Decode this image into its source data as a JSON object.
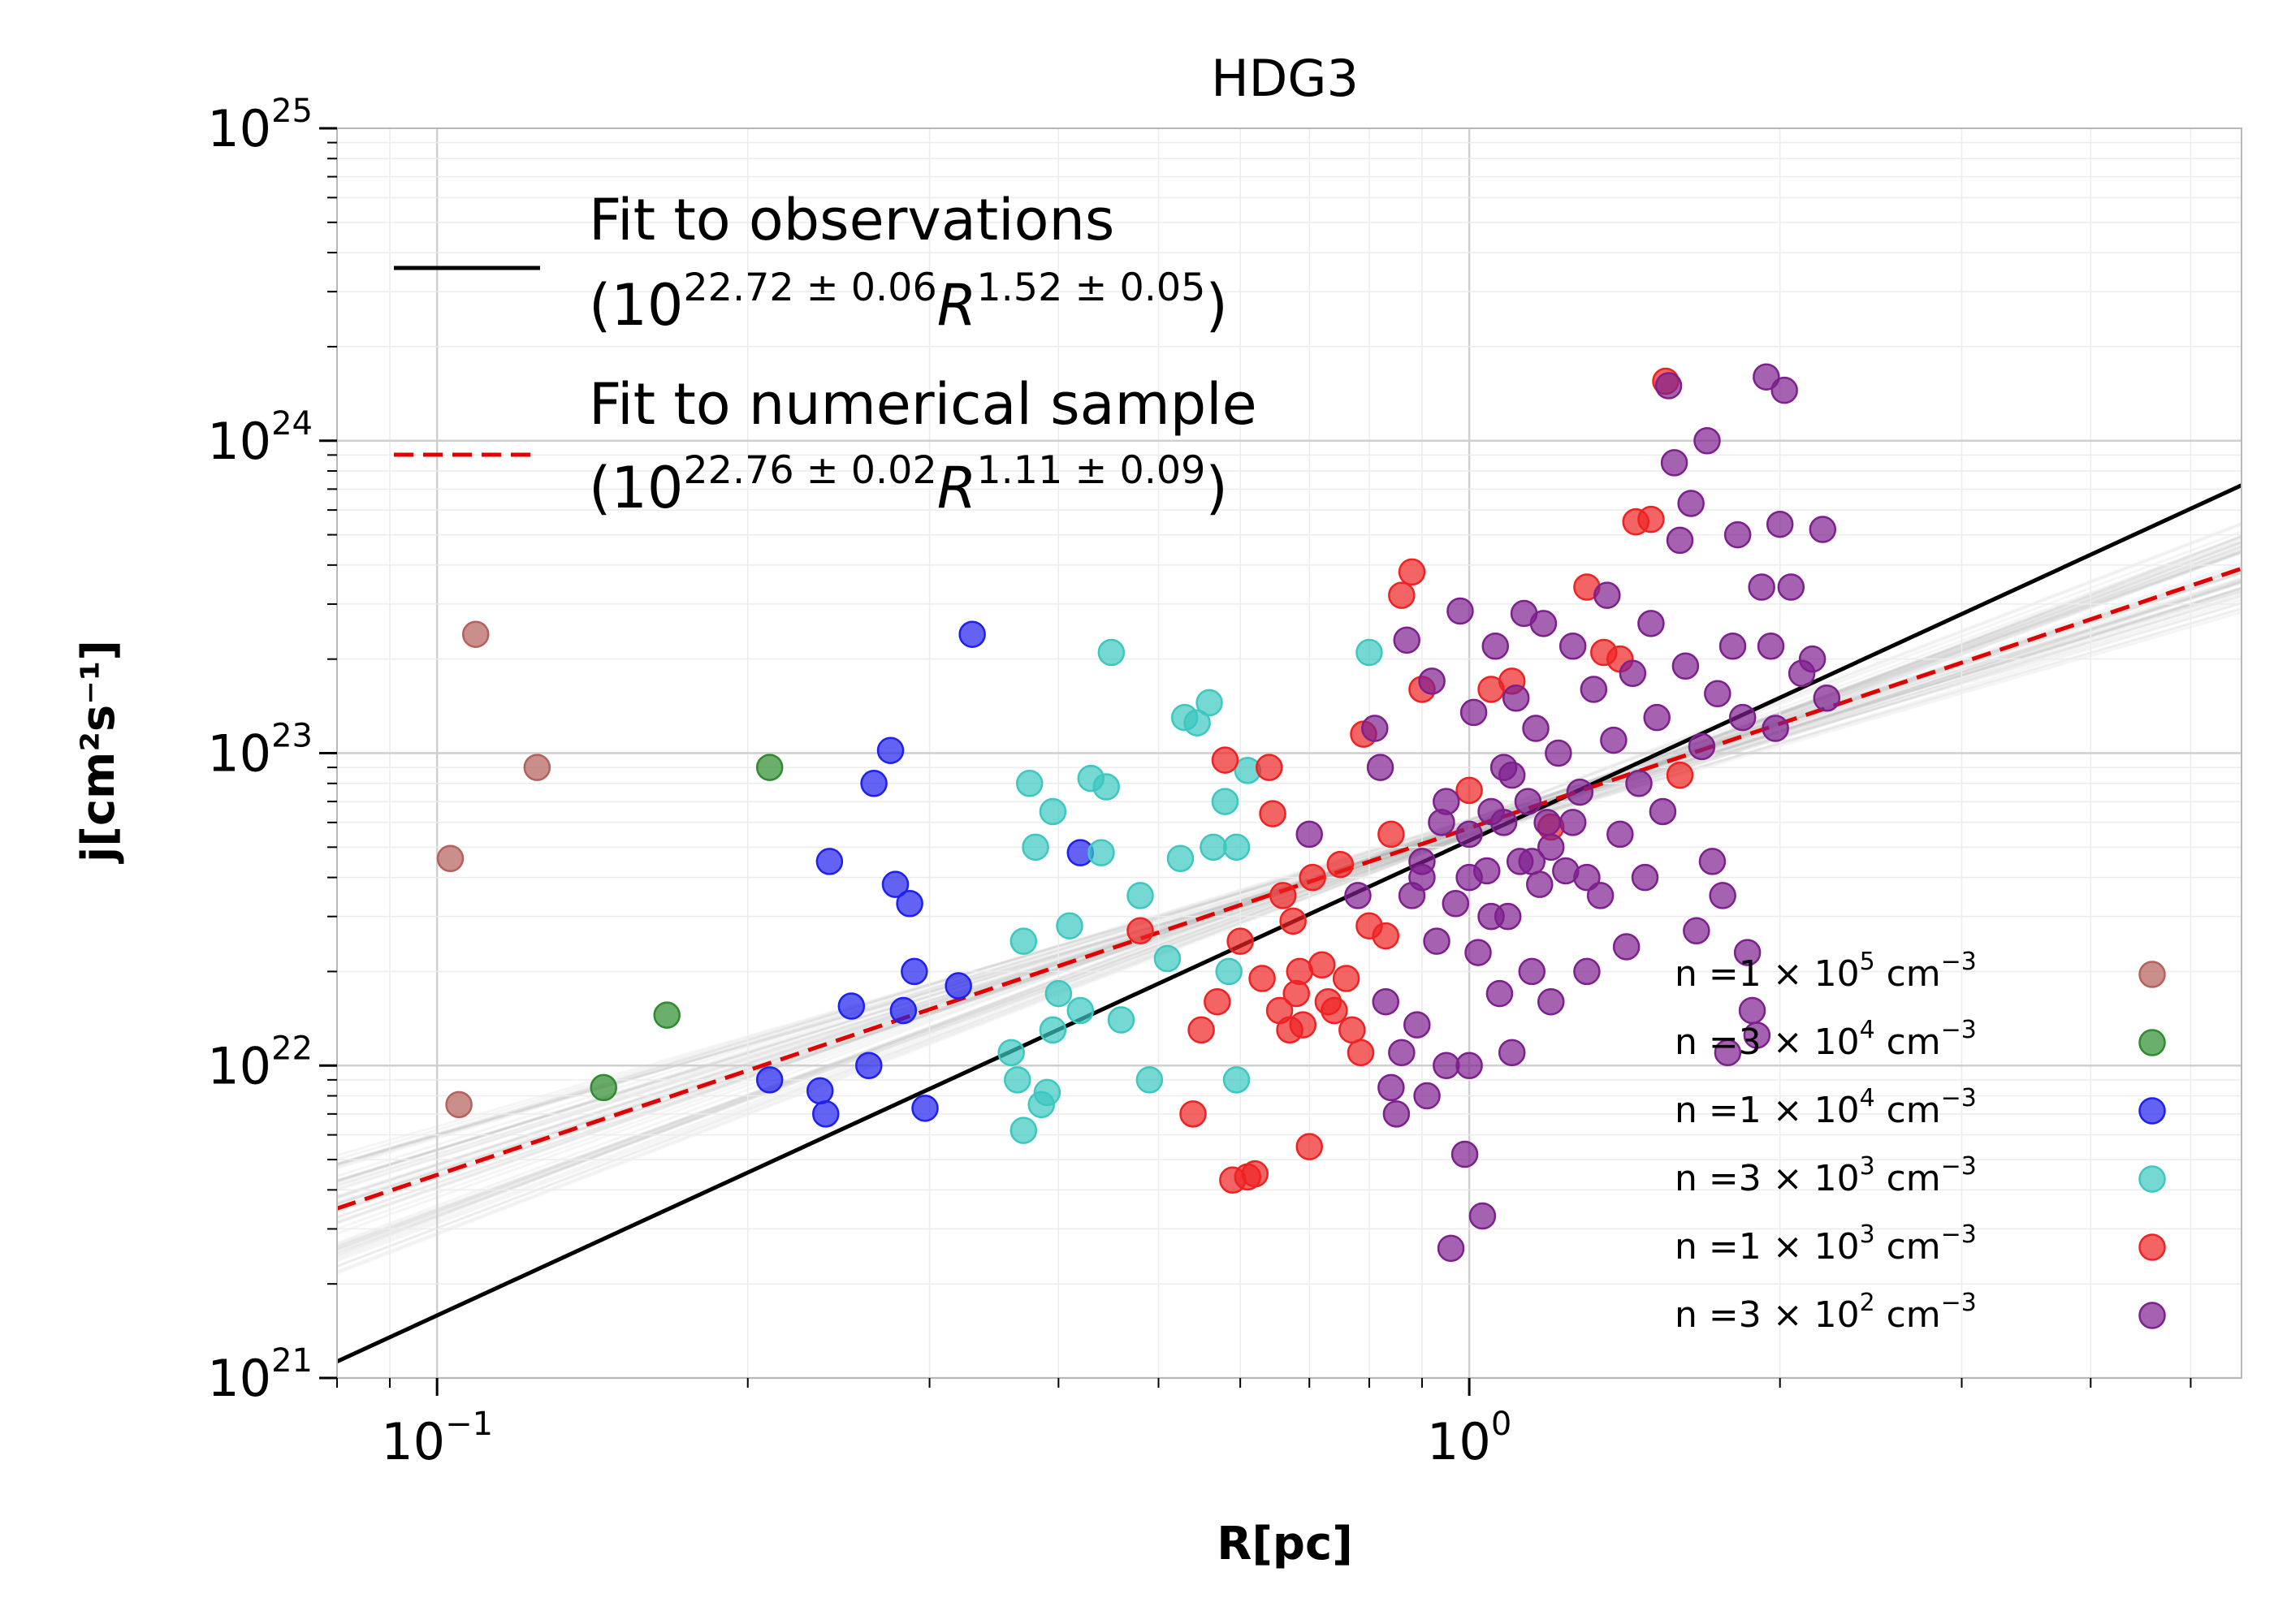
{
  "chart_data": {
    "type": "scatter",
    "title": "HDG3",
    "xlabel": "R[pc]",
    "ylabel": "j[cm²s⁻¹]",
    "xscale": "log",
    "yscale": "log",
    "xlim": [
      0.08,
      5.6
    ],
    "ylim": [
      1e+21,
      1e+25
    ],
    "x_ticks": [
      {
        "base": "10",
        "exp": "−1",
        "value": 0.1
      },
      {
        "base": "10",
        "exp": "0",
        "value": 1
      }
    ],
    "y_ticks": [
      {
        "base": "10",
        "exp": "21",
        "value": 1e+21
      },
      {
        "base": "10",
        "exp": "22",
        "value": 1e+22
      },
      {
        "base": "10",
        "exp": "23",
        "value": 1e+23
      },
      {
        "base": "10",
        "exp": "24",
        "value": 1e+24
      },
      {
        "base": "10",
        "exp": "25",
        "value": 1e+25
      }
    ],
    "grid": true,
    "fit_lines": [
      {
        "name": "Fit to observations",
        "formula_base": "10",
        "formula_exp": "22.72 ± 0.06",
        "formula_var": "R",
        "formula_pow": "1.52 ± 0.05",
        "log_intercept": 22.72,
        "slope": 1.52,
        "color": "#000000",
        "style": "solid"
      },
      {
        "name": "Fit to numerical sample",
        "formula_base": "10",
        "formula_exp": "22.76 ± 0.02",
        "formula_var": "R",
        "formula_pow": "1.11 ± 0.09",
        "log_intercept": 22.76,
        "slope": 1.11,
        "color": "#e00000",
        "style": "dashed"
      }
    ],
    "uncertainty_band": {
      "color": "#b0b0b0",
      "log_intercept_range": [
        22.73,
        22.79
      ],
      "slope_range": [
        0.95,
        1.28
      ]
    },
    "series": [
      {
        "name": "n =1×10⁵ cm⁻³",
        "label_pre": "n  =1 × 10",
        "label_exp": "5",
        "label_post": " cm",
        "label_unit_exp": "−3",
        "color": "#b5605a",
        "points": [
          [
            0.103,
            4.6e+22
          ],
          [
            0.105,
            7.5e+21
          ],
          [
            0.109,
            2.4e+23
          ],
          [
            0.125,
            9e+22
          ]
        ]
      },
      {
        "name": "n =3×10⁴ cm⁻³",
        "label_pre": "n  =3 × 10",
        "label_exp": "4",
        "label_post": " cm",
        "label_unit_exp": "−3",
        "color": "#2e8b2e",
        "points": [
          [
            0.145,
            8.5e+21
          ],
          [
            0.167,
            1.45e+22
          ],
          [
            0.21,
            9e+22
          ]
        ]
      },
      {
        "name": "n =1×10⁴ cm⁻³",
        "label_pre": "n  =1 × 10",
        "label_exp": "4",
        "label_post": " cm",
        "label_unit_exp": "−3",
        "color": "#1f1fee",
        "points": [
          [
            0.21,
            9e+21
          ],
          [
            0.235,
            8.3e+21
          ],
          [
            0.238,
            7e+21
          ],
          [
            0.24,
            4.5e+22
          ],
          [
            0.252,
            1.55e+22
          ],
          [
            0.262,
            1e+22
          ],
          [
            0.265,
            8e+22
          ],
          [
            0.275,
            1.02e+23
          ],
          [
            0.278,
            3.8e+22
          ],
          [
            0.283,
            1.5e+22
          ],
          [
            0.287,
            3.3e+22
          ],
          [
            0.29,
            2e+22
          ],
          [
            0.297,
            7.3e+21
          ],
          [
            0.33,
            2.4e+23
          ],
          [
            0.32,
            1.8e+22
          ],
          [
            0.42,
            4.8e+22
          ]
        ]
      },
      {
        "name": "n =3×10³ cm⁻³",
        "label_pre": "n  =3 × 10",
        "label_exp": "3",
        "label_post": " cm",
        "label_unit_exp": "−3",
        "color": "#3cc8c0",
        "points": [
          [
            0.36,
            1.1e+22
          ],
          [
            0.365,
            9e+21
          ],
          [
            0.37,
            6.2e+21
          ],
          [
            0.37,
            2.5e+22
          ],
          [
            0.375,
            8e+22
          ],
          [
            0.38,
            5e+22
          ],
          [
            0.385,
            7.5e+21
          ],
          [
            0.39,
            8.2e+21
          ],
          [
            0.395,
            6.5e+22
          ],
          [
            0.395,
            1.3e+22
          ],
          [
            0.4,
            1.7e+22
          ],
          [
            0.41,
            2.8e+22
          ],
          [
            0.42,
            1.5e+22
          ],
          [
            0.43,
            8.3e+22
          ],
          [
            0.44,
            4.8e+22
          ],
          [
            0.445,
            7.8e+22
          ],
          [
            0.45,
            2.1e+23
          ],
          [
            0.46,
            1.4e+22
          ],
          [
            0.48,
            3.5e+22
          ],
          [
            0.49,
            9e+21
          ],
          [
            0.51,
            2.2e+22
          ],
          [
            0.525,
            4.6e+22
          ],
          [
            0.53,
            1.3e+23
          ],
          [
            0.545,
            1.25e+23
          ],
          [
            0.56,
            1.45e+23
          ],
          [
            0.565,
            5e+22
          ],
          [
            0.58,
            7e+22
          ],
          [
            0.595,
            5e+22
          ],
          [
            0.61,
            8.8e+22
          ],
          [
            0.595,
            9e+21
          ],
          [
            0.585,
            2e+22
          ],
          [
            0.8,
            2.1e+23
          ]
        ]
      },
      {
        "name": "n =1×10³ cm⁻³",
        "label_pre": "n  =1 × 10",
        "label_exp": "3",
        "label_post": " cm",
        "label_unit_exp": "−3",
        "color": "#ee2222",
        "points": [
          [
            0.48,
            2.7e+22
          ],
          [
            0.54,
            7e+21
          ],
          [
            0.55,
            1.3e+22
          ],
          [
            0.57,
            1.6e+22
          ],
          [
            0.58,
            9.5e+22
          ],
          [
            0.59,
            4.3e+21
          ],
          [
            0.6,
            2.5e+22
          ],
          [
            0.61,
            4.4e+21
          ],
          [
            0.62,
            4.5e+21
          ],
          [
            0.63,
            1.9e+22
          ],
          [
            0.64,
            9e+22
          ],
          [
            0.645,
            6.4e+22
          ],
          [
            0.655,
            1.5e+22
          ],
          [
            0.66,
            3.5e+22
          ],
          [
            0.67,
            1.3e+22
          ],
          [
            0.675,
            2.9e+22
          ],
          [
            0.68,
            1.7e+22
          ],
          [
            0.685,
            2e+22
          ],
          [
            0.69,
            1.35e+22
          ],
          [
            0.7,
            5.5e+21
          ],
          [
            0.705,
            4e+22
          ],
          [
            0.72,
            2.1e+22
          ],
          [
            0.73,
            1.6e+22
          ],
          [
            0.74,
            1.5e+22
          ],
          [
            0.75,
            4.4e+22
          ],
          [
            0.76,
            1.9e+22
          ],
          [
            0.77,
            1.3e+22
          ],
          [
            0.785,
            1.1e+22
          ],
          [
            0.79,
            1.15e+23
          ],
          [
            0.8,
            2.8e+22
          ],
          [
            0.83,
            2.6e+22
          ],
          [
            0.84,
            5.5e+22
          ],
          [
            0.86,
            3.2e+23
          ],
          [
            0.88,
            3.8e+23
          ],
          [
            0.9,
            1.6e+23
          ],
          [
            1.0,
            7.6e+22
          ],
          [
            1.05,
            1.6e+23
          ],
          [
            1.1,
            1.7e+23
          ],
          [
            1.2,
            5.8e+22
          ],
          [
            1.3,
            3.4e+23
          ],
          [
            1.35,
            2.1e+23
          ],
          [
            1.4,
            2e+23
          ],
          [
            1.45,
            5.5e+23
          ],
          [
            1.5,
            5.6e+23
          ],
          [
            1.55,
            1.55e+24
          ],
          [
            1.6,
            8.5e+22
          ]
        ]
      },
      {
        "name": "n =3×10² cm⁻³",
        "label_pre": "n  =3 × 10",
        "label_exp": "2",
        "label_post": " cm",
        "label_unit_exp": "−3",
        "color": "#7e1f8e",
        "points": [
          [
            0.7,
            5.5e+22
          ],
          [
            0.78,
            3.5e+22
          ],
          [
            0.81,
            1.2e+23
          ],
          [
            0.82,
            9e+22
          ],
          [
            0.83,
            1.6e+22
          ],
          [
            0.84,
            8.5e+21
          ],
          [
            0.85,
            7e+21
          ],
          [
            0.86,
            1.1e+22
          ],
          [
            0.87,
            2.3e+23
          ],
          [
            0.88,
            3.5e+22
          ],
          [
            0.89,
            1.35e+22
          ],
          [
            0.9,
            4.5e+22
          ],
          [
            0.91,
            8e+21
          ],
          [
            0.92,
            1.7e+23
          ],
          [
            0.93,
            2.5e+22
          ],
          [
            0.94,
            6e+22
          ],
          [
            0.95,
            1e+22
          ],
          [
            0.96,
            2.6e+21
          ],
          [
            0.97,
            3.3e+22
          ],
          [
            0.98,
            2.85e+23
          ],
          [
            0.99,
            5.2e+21
          ],
          [
            1.0,
            1e+22
          ],
          [
            1.01,
            1.35e+23
          ],
          [
            1.02,
            2.3e+22
          ],
          [
            1.03,
            3.3e+21
          ],
          [
            1.04,
            4.2e+22
          ],
          [
            1.05,
            6.5e+22
          ],
          [
            1.06,
            2.2e+23
          ],
          [
            1.07,
            1.7e+22
          ],
          [
            1.08,
            9e+22
          ],
          [
            1.09,
            3e+22
          ],
          [
            1.1,
            1.1e+22
          ],
          [
            1.11,
            1.5e+23
          ],
          [
            1.12,
            4.5e+22
          ],
          [
            1.13,
            2.8e+23
          ],
          [
            1.14,
            7e+22
          ],
          [
            1.15,
            2e+22
          ],
          [
            1.16,
            1.2e+23
          ],
          [
            1.17,
            3.8e+22
          ],
          [
            1.18,
            2.6e+23
          ],
          [
            1.19,
            6e+22
          ],
          [
            1.2,
            1.6e+22
          ],
          [
            1.22,
            1e+23
          ],
          [
            1.24,
            4.2e+22
          ],
          [
            1.26,
            2.2e+23
          ],
          [
            1.28,
            7.5e+22
          ],
          [
            1.3,
            2e+22
          ],
          [
            1.32,
            1.6e+23
          ],
          [
            1.34,
            3.5e+22
          ],
          [
            1.36,
            3.2e+23
          ],
          [
            1.38,
            1.1e+23
          ],
          [
            1.4,
            5.5e+22
          ],
          [
            1.42,
            2.4e+22
          ],
          [
            1.44,
            1.8e+23
          ],
          [
            1.46,
            8e+22
          ],
          [
            1.48,
            4e+22
          ],
          [
            1.5,
            2.6e+23
          ],
          [
            1.52,
            1.3e+23
          ],
          [
            1.54,
            6.5e+22
          ],
          [
            1.56,
            1.5e+24
          ],
          [
            1.58,
            8.5e+23
          ],
          [
            1.6,
            4.8e+23
          ],
          [
            1.62,
            1.9e+23
          ],
          [
            1.64,
            6.3e+23
          ],
          [
            1.66,
            2.7e+22
          ],
          [
            1.68,
            1.05e+23
          ],
          [
            1.7,
            1e+24
          ],
          [
            1.72,
            4.5e+22
          ],
          [
            1.74,
            1.55e+23
          ],
          [
            1.76,
            3.5e+22
          ],
          [
            1.78,
            1.1e+22
          ],
          [
            1.8,
            2.2e+23
          ],
          [
            1.82,
            5e+23
          ],
          [
            1.84,
            1.3e+23
          ],
          [
            1.86,
            2.3e+22
          ],
          [
            1.88,
            1.5e+22
          ],
          [
            1.9,
            1.25e+22
          ],
          [
            1.92,
            3.4e+23
          ],
          [
            1.94,
            1.6e+24
          ],
          [
            1.96,
            2.2e+23
          ],
          [
            1.98,
            1.2e+23
          ],
          [
            2.0,
            5.4e+23
          ],
          [
            2.02,
            1.45e+24
          ],
          [
            2.05,
            3.4e+23
          ],
          [
            2.1,
            1.8e+23
          ],
          [
            2.15,
            2e+23
          ],
          [
            2.2,
            5.2e+23
          ],
          [
            2.22,
            1.5e+23
          ],
          [
            1.26,
            6e+22
          ],
          [
            1.15,
            4.5e+22
          ],
          [
            1.05,
            3e+22
          ],
          [
            1.0,
            5.5e+22
          ],
          [
            0.95,
            7e+22
          ],
          [
            1.1,
            8.5e+22
          ],
          [
            1.2,
            5e+22
          ],
          [
            1.3,
            4e+22
          ],
          [
            0.9,
            4e+22
          ],
          [
            1.0,
            4e+22
          ],
          [
            1.08,
            6e+22
          ]
        ]
      }
    ]
  }
}
